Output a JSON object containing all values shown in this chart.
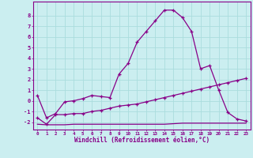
{
  "xlabel": "Windchill (Refroidissement éolien,°C)",
  "bg_color": "#cbeef0",
  "line_color": "#880088",
  "grid_color": "#aadddd",
  "x_main": [
    0,
    1,
    2,
    3,
    4,
    5,
    6,
    7,
    8,
    9,
    10,
    11,
    12,
    13,
    14,
    15,
    16,
    17,
    18,
    19,
    20,
    21,
    22,
    23
  ],
  "y_line1": [
    0.5,
    -1.6,
    -1.2,
    -0.1,
    0.0,
    0.2,
    0.5,
    0.4,
    0.3,
    2.5,
    3.5,
    5.5,
    6.5,
    7.5,
    8.5,
    8.5,
    7.8,
    6.5,
    3.0,
    3.3,
    1.0,
    -1.1,
    -1.7,
    -1.9
  ],
  "y_line2": [
    -1.6,
    -2.2,
    -1.3,
    -1.3,
    -1.2,
    -1.2,
    -1.0,
    -0.9,
    -0.7,
    -0.5,
    -0.4,
    -0.3,
    -0.1,
    0.1,
    0.3,
    0.5,
    0.7,
    0.9,
    1.1,
    1.3,
    1.5,
    1.7,
    1.9,
    2.1
  ],
  "y_line3": [
    -2.2,
    -2.25,
    -2.25,
    -2.25,
    -2.2,
    -2.2,
    -2.2,
    -2.2,
    -2.2,
    -2.2,
    -2.2,
    -2.2,
    -2.2,
    -2.2,
    -2.2,
    -2.15,
    -2.1,
    -2.1,
    -2.1,
    -2.1,
    -2.1,
    -2.1,
    -2.1,
    -2.1
  ],
  "ylim": [
    -2.7,
    9.3
  ],
  "yticks": [
    -2,
    -1,
    0,
    1,
    2,
    3,
    4,
    5,
    6,
    7,
    8
  ],
  "xlim": [
    -0.5,
    23.5
  ],
  "xtick_labels": [
    "0",
    "1",
    "2",
    "3",
    "4",
    "5",
    "6",
    "7",
    "8",
    "9",
    "10",
    "11",
    "12",
    "13",
    "14",
    "15",
    "16",
    "17",
    "18",
    "19",
    "20",
    "21",
    "22",
    "23"
  ]
}
